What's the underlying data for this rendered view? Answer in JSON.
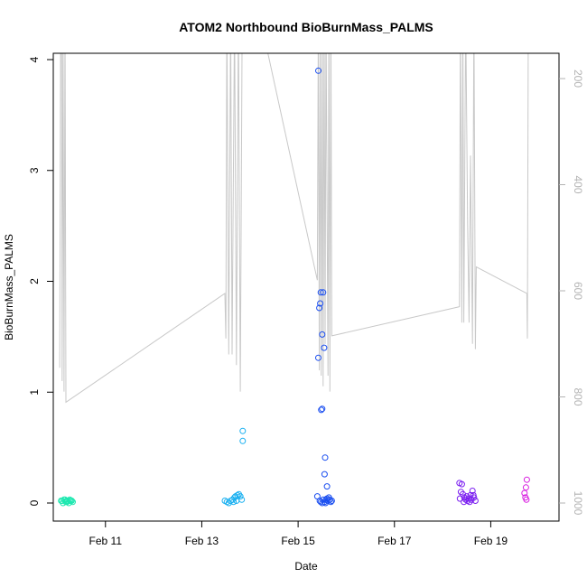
{
  "chart_data": {
    "type": "scatter",
    "title": "ATOM2 Northbound BioBurnMass_PALMS",
    "xlabel": "Date",
    "ylabel": "BioBurnMass_PALMS",
    "x_ticks": [
      {
        "day": 11,
        "label": "Feb 11"
      },
      {
        "day": 13,
        "label": "Feb 13"
      },
      {
        "day": 15,
        "label": "Feb 15"
      },
      {
        "day": 17,
        "label": "Feb 17"
      },
      {
        "day": 19,
        "label": "Feb 19"
      }
    ],
    "xlim": [
      "Feb 09 22:00",
      "Feb 20 10:00"
    ],
    "ylim": [
      0,
      4
    ],
    "y_ticks": [
      0,
      1,
      2,
      3,
      4
    ],
    "secondary_axis": {
      "ticks": [
        200,
        400,
        600,
        800,
        1000
      ],
      "reversed": true,
      "color": "#b3b3b3"
    },
    "grid": false,
    "series": [
      {
        "color": "#1ee8b0",
        "points": [
          [
            10.1,
            0.02
          ],
          [
            10.14,
            0.03
          ],
          [
            10.18,
            0.01
          ],
          [
            10.22,
            0.02
          ],
          [
            10.26,
            0.03
          ],
          [
            10.3,
            0.02
          ],
          [
            10.12,
            0.0
          ],
          [
            10.2,
            0.01
          ],
          [
            10.24,
            0.0
          ],
          [
            10.28,
            0.02
          ],
          [
            10.16,
            0.03
          ],
          [
            10.08,
            0.02
          ],
          [
            10.32,
            0.01
          ],
          [
            10.26,
            0.02
          ],
          [
            10.19,
            0.02
          ]
        ]
      },
      {
        "color": "#1ab0f0",
        "points": [
          [
            13.48,
            0.02
          ],
          [
            13.52,
            0.01
          ],
          [
            13.56,
            0.0
          ],
          [
            13.6,
            0.02
          ],
          [
            13.64,
            0.03
          ],
          [
            13.68,
            0.05
          ],
          [
            13.7,
            0.06
          ],
          [
            13.74,
            0.07
          ],
          [
            13.77,
            0.08
          ],
          [
            13.8,
            0.06
          ],
          [
            13.83,
            0.03
          ],
          [
            13.72,
            0.02
          ],
          [
            13.66,
            0.01
          ],
          [
            13.85,
            0.65
          ],
          [
            13.85,
            0.56
          ]
        ]
      },
      {
        "color": "#1a4ef0",
        "points": [
          [
            15.42,
            3.9
          ],
          [
            15.47,
            1.9
          ],
          [
            15.52,
            1.9
          ],
          [
            15.46,
            1.8
          ],
          [
            15.44,
            1.76
          ],
          [
            15.5,
            1.52
          ],
          [
            15.54,
            1.4
          ],
          [
            15.42,
            1.31
          ],
          [
            15.48,
            0.84
          ],
          [
            15.5,
            0.85
          ],
          [
            15.56,
            0.41
          ],
          [
            15.55,
            0.26
          ],
          [
            15.6,
            0.15
          ],
          [
            15.4,
            0.06
          ],
          [
            15.45,
            0.02
          ],
          [
            15.5,
            0.0
          ],
          [
            15.55,
            0.01
          ],
          [
            15.58,
            0.03
          ],
          [
            15.6,
            0.04
          ],
          [
            15.62,
            0.02
          ],
          [
            15.64,
            0.05
          ],
          [
            15.66,
            0.03
          ],
          [
            15.68,
            0.01
          ],
          [
            15.7,
            0.02
          ],
          [
            15.52,
            0.03
          ],
          [
            15.47,
            0.01
          ],
          [
            15.57,
            0.0
          ]
        ]
      },
      {
        "color": "#7a1ef0",
        "points": [
          [
            18.35,
            0.18
          ],
          [
            18.4,
            0.17
          ],
          [
            18.38,
            0.1
          ],
          [
            18.42,
            0.08
          ],
          [
            18.45,
            0.05
          ],
          [
            18.48,
            0.03
          ],
          [
            18.5,
            0.06
          ],
          [
            18.52,
            0.02
          ],
          [
            18.55,
            0.04
          ],
          [
            18.58,
            0.07
          ],
          [
            18.6,
            0.03
          ],
          [
            18.62,
            0.11
          ],
          [
            18.65,
            0.05
          ],
          [
            18.68,
            0.02
          ],
          [
            18.36,
            0.04
          ],
          [
            18.44,
            0.01
          ],
          [
            18.56,
            0.01
          ],
          [
            18.64,
            0.07
          ]
        ]
      },
      {
        "color": "#d81ee0",
        "points": [
          [
            19.75,
            0.21
          ],
          [
            19.73,
            0.14
          ],
          [
            19.7,
            0.09
          ],
          [
            19.72,
            0.05
          ],
          [
            19.74,
            0.03
          ]
        ]
      }
    ],
    "altitude_trace": {
      "color": "#c8c8c8",
      "axis": "secondary",
      "points": [
        [
          10.05,
          745
        ],
        [
          10.07,
          80
        ],
        [
          10.09,
          160
        ],
        [
          10.1,
          770
        ],
        [
          10.12,
          80
        ],
        [
          10.14,
          790
        ],
        [
          10.16,
          80
        ],
        [
          10.18,
          810
        ],
        [
          13.48,
          605
        ],
        [
          13.5,
          690
        ],
        [
          13.52,
          80
        ],
        [
          13.56,
          720
        ],
        [
          13.6,
          80
        ],
        [
          13.63,
          720
        ],
        [
          13.68,
          80
        ],
        [
          13.72,
          740
        ],
        [
          13.76,
          80
        ],
        [
          13.8,
          790
        ],
        [
          13.84,
          80
        ],
        [
          14.2,
          80
        ],
        [
          15.4,
          580
        ],
        [
          15.42,
          80
        ],
        [
          15.44,
          750
        ],
        [
          15.46,
          80
        ],
        [
          15.48,
          760
        ],
        [
          15.5,
          80
        ],
        [
          15.52,
          780
        ],
        [
          15.54,
          80
        ],
        [
          15.56,
          700
        ],
        [
          15.58,
          80
        ],
        [
          15.62,
          760
        ],
        [
          15.64,
          80
        ],
        [
          15.66,
          790
        ],
        [
          15.68,
          80
        ],
        [
          15.7,
          685
        ],
        [
          18.35,
          630
        ],
        [
          18.37,
          80
        ],
        [
          18.4,
          660
        ],
        [
          18.42,
          80
        ],
        [
          18.44,
          660
        ],
        [
          18.48,
          80
        ],
        [
          18.52,
          475
        ],
        [
          18.55,
          660
        ],
        [
          18.58,
          345
        ],
        [
          18.62,
          700
        ],
        [
          18.65,
          80
        ],
        [
          18.68,
          710
        ],
        [
          18.7,
          555
        ],
        [
          19.75,
          605
        ],
        [
          19.76,
          690
        ],
        [
          19.78,
          80
        ]
      ]
    }
  }
}
